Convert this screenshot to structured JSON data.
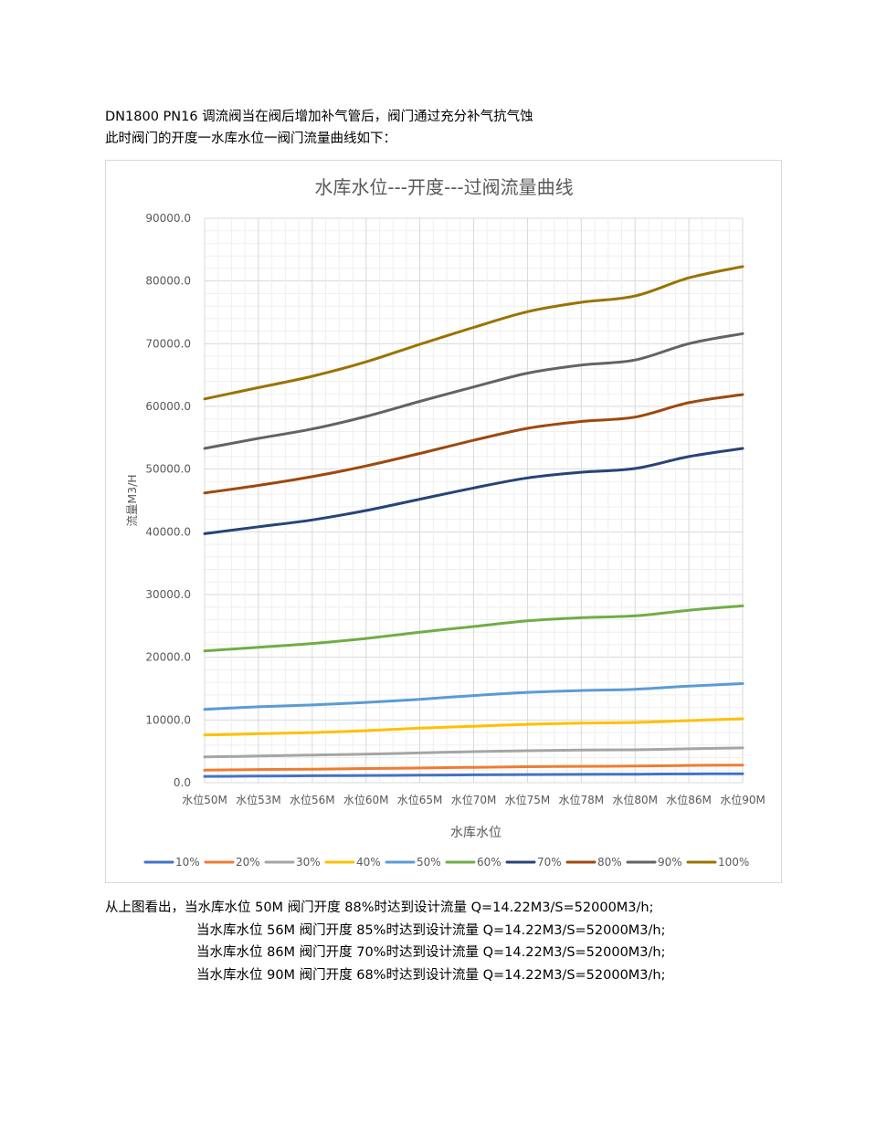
{
  "intro": {
    "line1": "DN1800 PN16  调流阀当在阀后增加补气管后，阀门通过充分补气抗气蚀",
    "line2": "此时阀门的开度一水库水位一阀门流量曲线如下："
  },
  "chart_data": {
    "type": "line",
    "title": "水库水位---开度---过阀流量曲线",
    "xlabel": "水库水位",
    "ylabel": "流量M3/H",
    "ylim": [
      0,
      90000
    ],
    "yticks": [
      "0.0",
      "10000.0",
      "20000.0",
      "30000.0",
      "40000.0",
      "50000.0",
      "60000.0",
      "70000.0",
      "80000.0",
      "90000.0"
    ],
    "categories": [
      "水位50M",
      "水位53M",
      "水位56M",
      "水位60M",
      "水位65M",
      "水位70M",
      "水位75M",
      "水位78M",
      "水位80M",
      "水位86M",
      "水位90M"
    ],
    "grid": true,
    "legend_position": "bottom",
    "series": [
      {
        "name": "10%",
        "color": "#4472C4",
        "values": [
          1000,
          1050,
          1100,
          1150,
          1200,
          1250,
          1300,
          1330,
          1350,
          1400,
          1430
        ]
      },
      {
        "name": "20%",
        "color": "#ED7D31",
        "values": [
          2000,
          2100,
          2150,
          2250,
          2350,
          2450,
          2550,
          2600,
          2650,
          2750,
          2800
        ]
      },
      {
        "name": "30%",
        "color": "#A5A5A5",
        "values": [
          4100,
          4250,
          4400,
          4550,
          4750,
          4950,
          5100,
          5200,
          5250,
          5400,
          5550
        ]
      },
      {
        "name": "40%",
        "color": "#FFC000",
        "values": [
          7600,
          7800,
          8000,
          8300,
          8700,
          9000,
          9300,
          9500,
          9600,
          9900,
          10200
        ]
      },
      {
        "name": "50%",
        "color": "#5B9BD5",
        "values": [
          11700,
          12100,
          12400,
          12800,
          13300,
          13900,
          14400,
          14700,
          14900,
          15400,
          15800
        ]
      },
      {
        "name": "60%",
        "color": "#70AD47",
        "values": [
          21000,
          21600,
          22200,
          23000,
          24000,
          24900,
          25800,
          26300,
          26600,
          27500,
          28200
        ]
      },
      {
        "name": "70%",
        "color": "#264478",
        "values": [
          39700,
          40800,
          41900,
          43400,
          45200,
          47000,
          48600,
          49500,
          50100,
          52000,
          53300
        ]
      },
      {
        "name": "80%",
        "color": "#9E480E",
        "values": [
          46200,
          47400,
          48800,
          50500,
          52500,
          54600,
          56500,
          57600,
          58300,
          60600,
          61900
        ]
      },
      {
        "name": "90%",
        "color": "#636363",
        "values": [
          53300,
          54900,
          56400,
          58400,
          60800,
          63100,
          65300,
          66600,
          67400,
          70000,
          71600
        ]
      },
      {
        "name": "100%",
        "color": "#997300",
        "values": [
          61200,
          63000,
          64800,
          67100,
          69900,
          72600,
          75100,
          76600,
          77600,
          80500,
          82300
        ]
      }
    ]
  },
  "notes": {
    "line1": "从上图看出，当水库水位 50M  阀门开度 88%时达到设计流量 Q=14.22M3/S=52000M3/h;",
    "line2": "当水库水位 56M  阀门开度 85%时达到设计流量 Q=14.22M3/S=52000M3/h;",
    "line3": "当水库水位 86M  阀门开度 70%时达到设计流量 Q=14.22M3/S=52000M3/h;",
    "line4": "当水库水位 90M  阀门开度 68%时达到设计流量 Q=14.22M3/S=52000M3/h;"
  }
}
